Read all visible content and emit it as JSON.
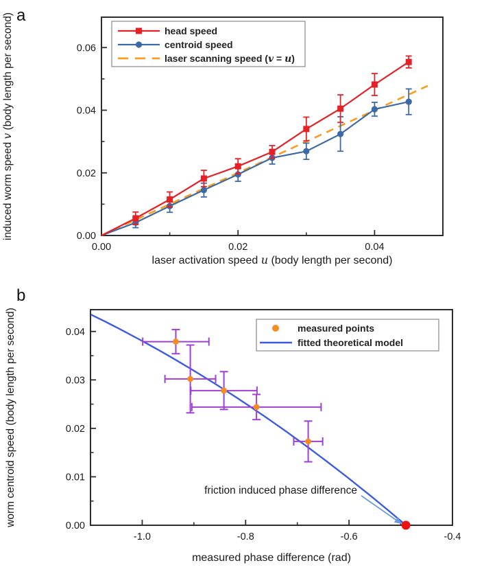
{
  "figure": {
    "background": "#ffffff",
    "axis_color": "#2d2d2d",
    "tick_label_color": "#1a1a1a"
  },
  "chart_data": [
    {
      "panel_label": "a",
      "type": "line",
      "xlabel": "laser activation speed *u* (body length per second)",
      "ylabel": "induced worm speed *v* (body length per second)",
      "xlim": [
        0,
        0.05
      ],
      "ylim": [
        0,
        0.0697
      ],
      "x_ticks": {
        "major": [
          {
            "v": 0,
            "label": "0.00"
          },
          {
            "v": 0.02,
            "label": "0.02"
          },
          {
            "v": 0.04,
            "label": "0.04"
          }
        ],
        "minor": [
          0.01,
          0.03
        ]
      },
      "y_ticks": {
        "major": [
          {
            "v": 0,
            "label": "0.00"
          },
          {
            "v": 0.02,
            "label": "0.02"
          },
          {
            "v": 0.04,
            "label": "0.04"
          },
          {
            "v": 0.06,
            "label": "0.06"
          }
        ],
        "minor": [
          0.01,
          0.03,
          0.05
        ]
      },
      "grid": false,
      "legend_position": "upper-left",
      "series": [
        {
          "name": "head speed",
          "color": "#e32127",
          "marker": "square",
          "starts_at_origin": true,
          "x": [
            0.005,
            0.01,
            0.015,
            0.02,
            0.025,
            0.03,
            0.035,
            0.04,
            0.045
          ],
          "y": [
            0.0055,
            0.0115,
            0.0182,
            0.0221,
            0.0267,
            0.034,
            0.0405,
            0.0482,
            0.0554
          ],
          "yerr": [
            0.002,
            0.0024,
            0.0026,
            0.0024,
            0.002,
            0.0038,
            0.0044,
            0.0035,
            0.0019
          ]
        },
        {
          "name": "centroid speed",
          "color": "#3c6aa5",
          "marker": "circle",
          "starts_at_origin": true,
          "x": [
            0.005,
            0.01,
            0.015,
            0.02,
            0.025,
            0.03,
            0.035,
            0.04,
            0.045
          ],
          "y": [
            0.0041,
            0.0094,
            0.0145,
            0.0195,
            0.0248,
            0.0269,
            0.0324,
            0.0403,
            0.0427
          ],
          "yerr": [
            0.0016,
            0.002,
            0.0022,
            0.0022,
            0.002,
            0.0026,
            0.0055,
            0.0022,
            0.0041
          ]
        },
        {
          "name": "laser scanning speed (*v* = *u*)",
          "color": "#f89d1f",
          "marker": "none",
          "style": "dashed",
          "x": [
            0,
            0.0478
          ],
          "y": [
            0,
            0.0478
          ]
        }
      ]
    },
    {
      "panel_label": "b",
      "type": "scatter",
      "xlabel": "measured phase difference (rad)",
      "ylabel": "worm centroid speed (body length per second)",
      "xlim": [
        -1.1,
        -0.4
      ],
      "ylim": [
        0,
        0.0445
      ],
      "x_ticks": {
        "major": [
          {
            "v": -1.0,
            "label": "-1.0"
          },
          {
            "v": -0.8,
            "label": "-0.8"
          },
          {
            "v": -0.6,
            "label": "-0.6"
          },
          {
            "v": -0.4,
            "label": "-0.4"
          }
        ],
        "minor": [
          -0.9,
          -0.7,
          -0.5
        ]
      },
      "y_ticks": {
        "major": [
          {
            "v": 0,
            "label": "0.00"
          },
          {
            "v": 0.01,
            "label": "0.01"
          },
          {
            "v": 0.02,
            "label": "0.02"
          },
          {
            "v": 0.03,
            "label": "0.03"
          },
          {
            "v": 0.04,
            "label": "0.04"
          }
        ],
        "minor": [
          0.005,
          0.015,
          0.025,
          0.035
        ]
      },
      "grid": false,
      "legend_position": "upper-right",
      "points": {
        "name": "measured points",
        "color": "#f68b1f",
        "error_color": "#9e3fd6",
        "x": [
          -0.935,
          -0.907,
          -0.842,
          -0.779,
          -0.679
        ],
        "y": [
          0.0379,
          0.0302,
          0.0278,
          0.0244,
          0.0173
        ],
        "xerr": [
          0.064,
          0.049,
          0.064,
          0.125,
          0.028
        ],
        "yerr": [
          0.0025,
          0.007,
          0.0039,
          0.0026,
          0.0042
        ]
      },
      "fit": {
        "name": "fitted theoretical model",
        "color": "#3d5be0",
        "x_start": -1.099,
        "x_end": -0.49,
        "coef_linear": 0.091,
        "coef_quad": -0.0322
      },
      "friction_point": {
        "x": -0.49,
        "y": 0,
        "color": "#ee1212",
        "label": "friction induced phase difference",
        "arrow_color": "#6e9bd9"
      }
    }
  ]
}
